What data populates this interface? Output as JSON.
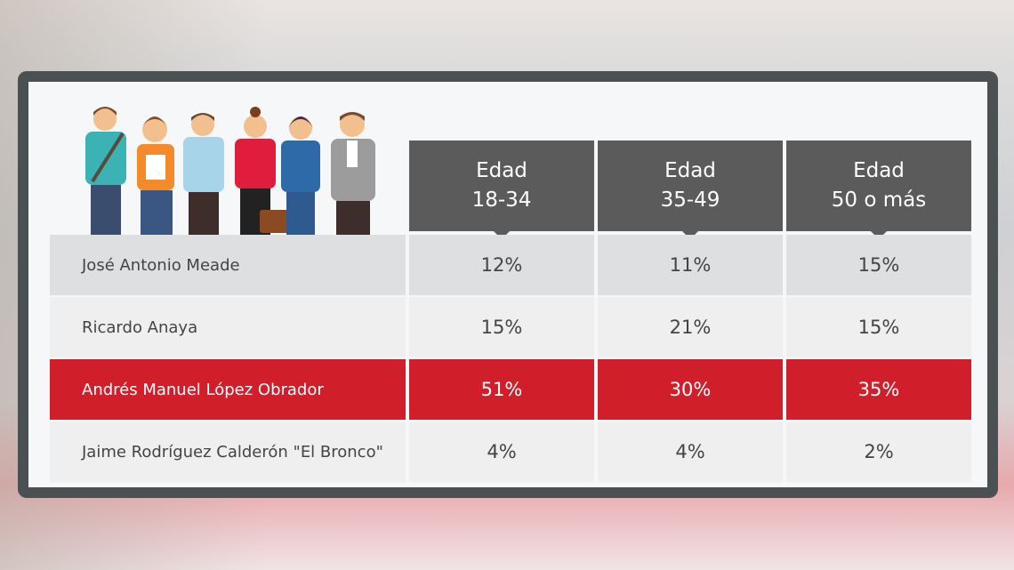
{
  "chart_data": {
    "type": "table",
    "columns": [
      {
        "line1": "Edad",
        "line2": "18-34"
      },
      {
        "line1": "Edad",
        "line2": "35-49"
      },
      {
        "line1": "Edad",
        "line2": "50 o más"
      }
    ],
    "rows": [
      {
        "name": "José Antonio Meade",
        "values": [
          "12%",
          "11%",
          "15%"
        ],
        "highlight": false
      },
      {
        "name": "Ricardo Anaya",
        "values": [
          "15%",
          "21%",
          "15%"
        ],
        "highlight": false
      },
      {
        "name": "Andrés Manuel López Obrador",
        "values": [
          "51%",
          "30%",
          "35%"
        ],
        "highlight": true
      },
      {
        "name": "Jaime Rodríguez Calderón \"El Bronco\"",
        "values": [
          "4%",
          "4%",
          "2%"
        ],
        "highlight": false
      }
    ],
    "colors": {
      "header": "#5b5b5b",
      "highlight": "#d01f2b",
      "row_dark": "#dedfe0",
      "row_light": "#efefef",
      "frame": "#4b5153"
    }
  }
}
